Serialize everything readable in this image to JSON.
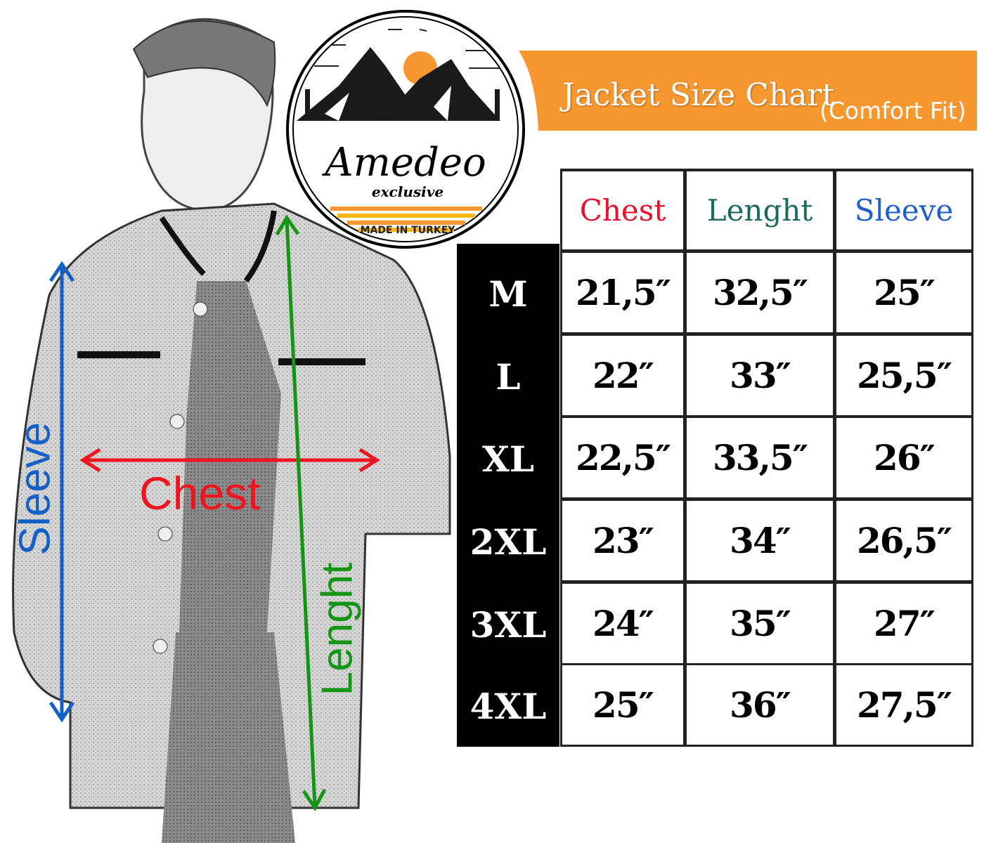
{
  "banner": {
    "title": "Jacket Size Chart",
    "subtitle": "(Comfort Fit)",
    "color": "#f7972f"
  },
  "logo": {
    "brand": "Amedeo",
    "tagline": "exclusive",
    "origin": "MADE IN TURKEY",
    "sun_color": "#f7972f",
    "stripe_colors": [
      "#f7972f",
      "#fbb917"
    ]
  },
  "figure": {
    "sleeve_label": "Sleeve",
    "sleeve_color": "#1560c8",
    "chest_label": "Chest",
    "chest_color": "#f0141e",
    "length_label": "Lenght",
    "length_color": "#149614"
  },
  "table": {
    "headers": [
      {
        "label": "Chest",
        "color": "#e8102e"
      },
      {
        "label": "Lenght",
        "color": "#1a6b5a"
      },
      {
        "label": "Sleeve",
        "color": "#1f5fc7"
      }
    ],
    "rows": [
      {
        "size": "M",
        "values": [
          "21,5″",
          "32,5″",
          "25″"
        ]
      },
      {
        "size": "L",
        "values": [
          "22″",
          "33″",
          "25,5″"
        ]
      },
      {
        "size": "XL",
        "values": [
          "22,5″",
          "33,5″",
          "26″"
        ]
      },
      {
        "size": "2XL",
        "values": [
          "23″",
          "34″",
          "26,5″"
        ]
      },
      {
        "size": "3XL",
        "values": [
          "24″",
          "35″",
          "27″"
        ]
      },
      {
        "size": "4XL",
        "values": [
          "25″",
          "36″",
          "27,5″"
        ]
      }
    ]
  }
}
